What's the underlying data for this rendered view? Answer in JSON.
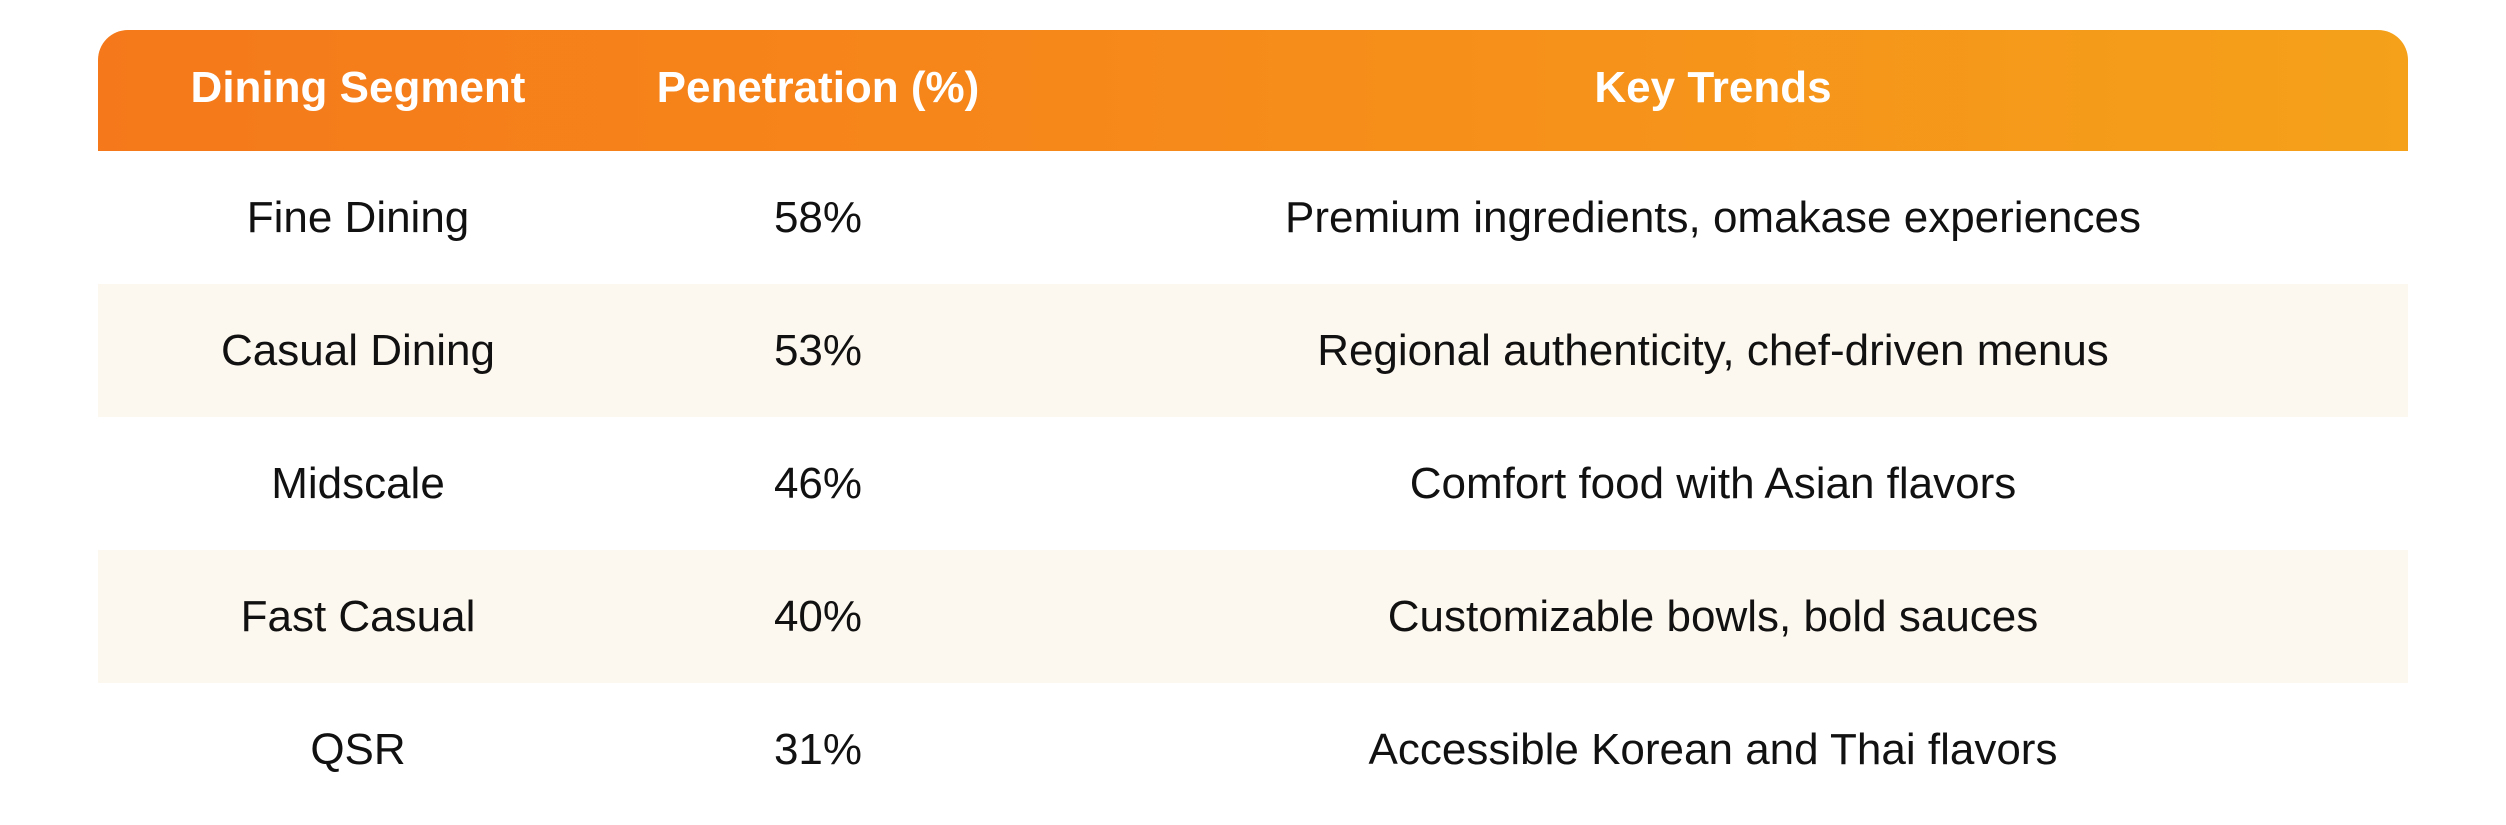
{
  "table": {
    "headers": [
      "Dining Segment",
      "Penetration (%)",
      "Key Trends"
    ],
    "rows": [
      {
        "segment": "Fine Dining",
        "penetration": "58%",
        "trends": "Premium ingredients, omakase experiences"
      },
      {
        "segment": "Casual Dining",
        "penetration": "53%",
        "trends": "Regional authenticity, chef-driven menus"
      },
      {
        "segment": "Midscale",
        "penetration": "46%",
        "trends": "Comfort food with Asian flavors"
      },
      {
        "segment": "Fast Casual",
        "penetration": "40%",
        "trends": "Customizable bowls, bold sauces"
      },
      {
        "segment": "QSR",
        "penetration": "31%",
        "trends": "Accessible Korean and Thai flavors"
      }
    ]
  },
  "colors": {
    "header_gradient_start": "#f5791a",
    "header_gradient_end": "#f5a11a",
    "header_text": "#ffffff",
    "alt_row_bg": "#fdf8ef",
    "body_text": "#111111"
  }
}
